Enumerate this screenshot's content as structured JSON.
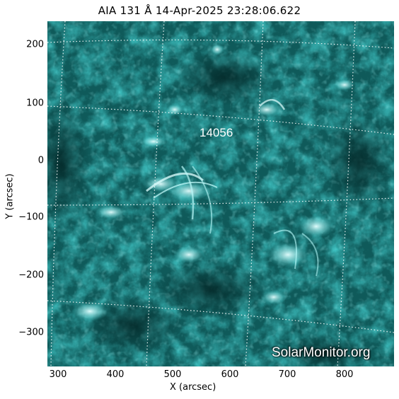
{
  "title": "AIA 131 Å 14-Apr-2025 23:28:06.622",
  "axes": {
    "xlabel": "X (arcsec)",
    "ylabel": "Y (arcsec)",
    "x_ticks": [
      "300",
      "400",
      "500",
      "600",
      "700",
      "800"
    ],
    "y_ticks": [
      "200",
      "100",
      "0",
      "−100",
      "−200",
      "−300"
    ]
  },
  "active_region": "14056",
  "watermark": "SolarMonitor.org",
  "colors": {
    "background": "#0b4545",
    "plasma": "#2fb5b5",
    "bright": "#c8ffff",
    "grid": "#ffffff"
  }
}
